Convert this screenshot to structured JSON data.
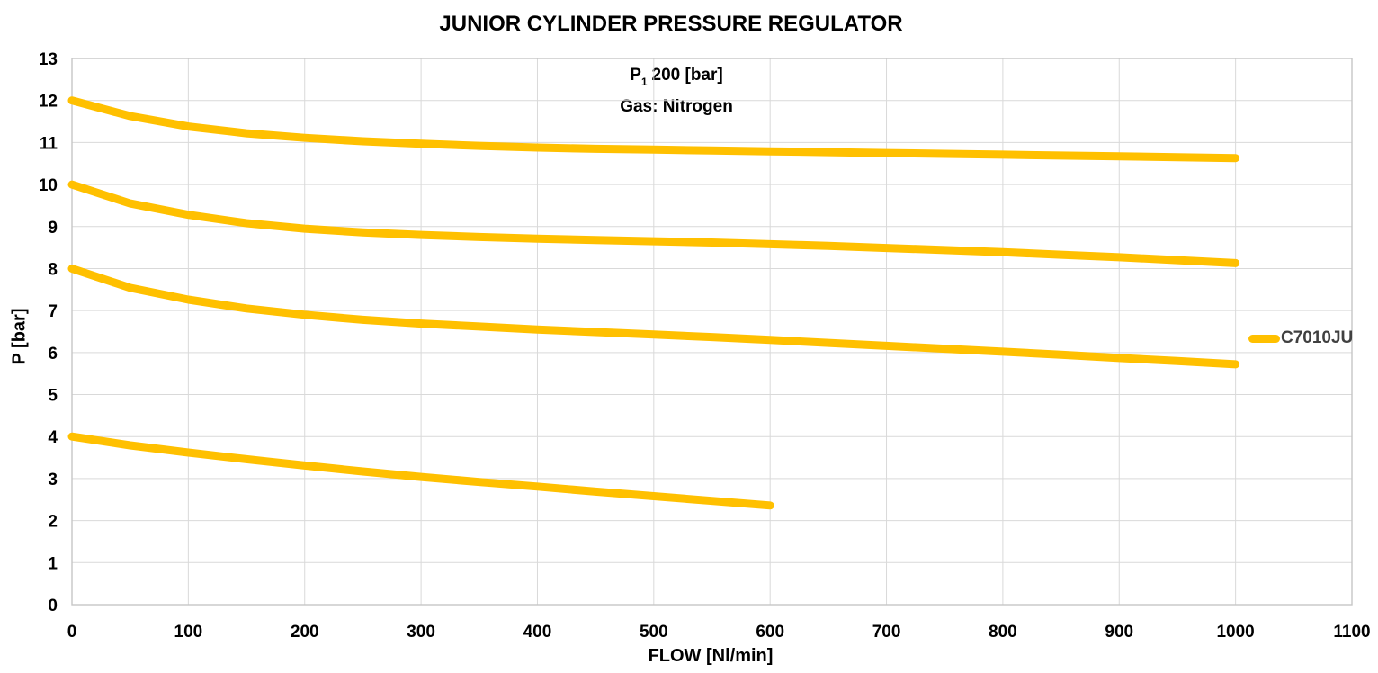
{
  "title": "JUNIOR CYLINDER PRESSURE REGULATOR",
  "annotation": {
    "pressure_symbol": "P",
    "pressure_subscript": "1",
    "pressure_value": "200 [bar]",
    "gas_line": "Gas: Nitrogen"
  },
  "legend": {
    "label": "C7010JU",
    "color": "#FFC000"
  },
  "colors": {
    "curve": "#FFC000",
    "gridline": "#D9D9D9",
    "plot_border": "#C6C6C6",
    "text": "#000000",
    "legend_text": "#404040"
  },
  "chart_data": {
    "type": "line",
    "title": "JUNIOR CYLINDER PRESSURE REGULATOR",
    "xlabel": "FLOW [Nl/min]",
    "ylabel": "P [bar]",
    "xlim": [
      0,
      1100
    ],
    "ylim": [
      0,
      13
    ],
    "xticks": [
      0,
      100,
      200,
      300,
      400,
      500,
      600,
      700,
      800,
      900,
      1000,
      1100
    ],
    "yticks": [
      0,
      1,
      2,
      3,
      4,
      5,
      6,
      7,
      8,
      9,
      10,
      11,
      12,
      13
    ],
    "grid": true,
    "legend_position": "right",
    "legend_entries": [
      "C7010JU"
    ],
    "line_color": "#FFC000",
    "line_width": 9,
    "series": [
      {
        "set_pressure_bar": 12,
        "points": [
          [
            0,
            12.0
          ],
          [
            50,
            11.63
          ],
          [
            100,
            11.38
          ],
          [
            150,
            11.22
          ],
          [
            200,
            11.11
          ],
          [
            250,
            11.03
          ],
          [
            300,
            10.97
          ],
          [
            350,
            10.92
          ],
          [
            400,
            10.88
          ],
          [
            450,
            10.85
          ],
          [
            500,
            10.83
          ],
          [
            550,
            10.81
          ],
          [
            600,
            10.79
          ],
          [
            650,
            10.77
          ],
          [
            700,
            10.75
          ],
          [
            750,
            10.73
          ],
          [
            800,
            10.71
          ],
          [
            850,
            10.69
          ],
          [
            900,
            10.67
          ],
          [
            950,
            10.65
          ],
          [
            1000,
            10.63
          ]
        ]
      },
      {
        "set_pressure_bar": 10,
        "points": [
          [
            0,
            10.0
          ],
          [
            50,
            9.55
          ],
          [
            100,
            9.28
          ],
          [
            150,
            9.08
          ],
          [
            200,
            8.95
          ],
          [
            250,
            8.86
          ],
          [
            300,
            8.8
          ],
          [
            350,
            8.75
          ],
          [
            400,
            8.71
          ],
          [
            450,
            8.68
          ],
          [
            500,
            8.65
          ],
          [
            550,
            8.62
          ],
          [
            600,
            8.58
          ],
          [
            650,
            8.54
          ],
          [
            700,
            8.49
          ],
          [
            750,
            8.44
          ],
          [
            800,
            8.39
          ],
          [
            850,
            8.33
          ],
          [
            900,
            8.27
          ],
          [
            950,
            8.2
          ],
          [
            1000,
            8.13
          ]
        ]
      },
      {
        "set_pressure_bar": 8,
        "points": [
          [
            0,
            8.0
          ],
          [
            50,
            7.54
          ],
          [
            100,
            7.26
          ],
          [
            150,
            7.05
          ],
          [
            200,
            6.9
          ],
          [
            250,
            6.78
          ],
          [
            300,
            6.69
          ],
          [
            350,
            6.62
          ],
          [
            400,
            6.55
          ],
          [
            450,
            6.49
          ],
          [
            500,
            6.43
          ],
          [
            550,
            6.37
          ],
          [
            600,
            6.3
          ],
          [
            650,
            6.23
          ],
          [
            700,
            6.16
          ],
          [
            750,
            6.09
          ],
          [
            800,
            6.02
          ],
          [
            850,
            5.95
          ],
          [
            900,
            5.87
          ],
          [
            950,
            5.8
          ],
          [
            1000,
            5.72
          ]
        ]
      },
      {
        "set_pressure_bar": 4,
        "points": [
          [
            0,
            4.0
          ],
          [
            50,
            3.79
          ],
          [
            100,
            3.62
          ],
          [
            150,
            3.46
          ],
          [
            200,
            3.31
          ],
          [
            250,
            3.17
          ],
          [
            300,
            3.04
          ],
          [
            350,
            2.92
          ],
          [
            400,
            2.81
          ],
          [
            450,
            2.69
          ],
          [
            500,
            2.58
          ],
          [
            550,
            2.47
          ],
          [
            600,
            2.36
          ]
        ]
      }
    ]
  }
}
